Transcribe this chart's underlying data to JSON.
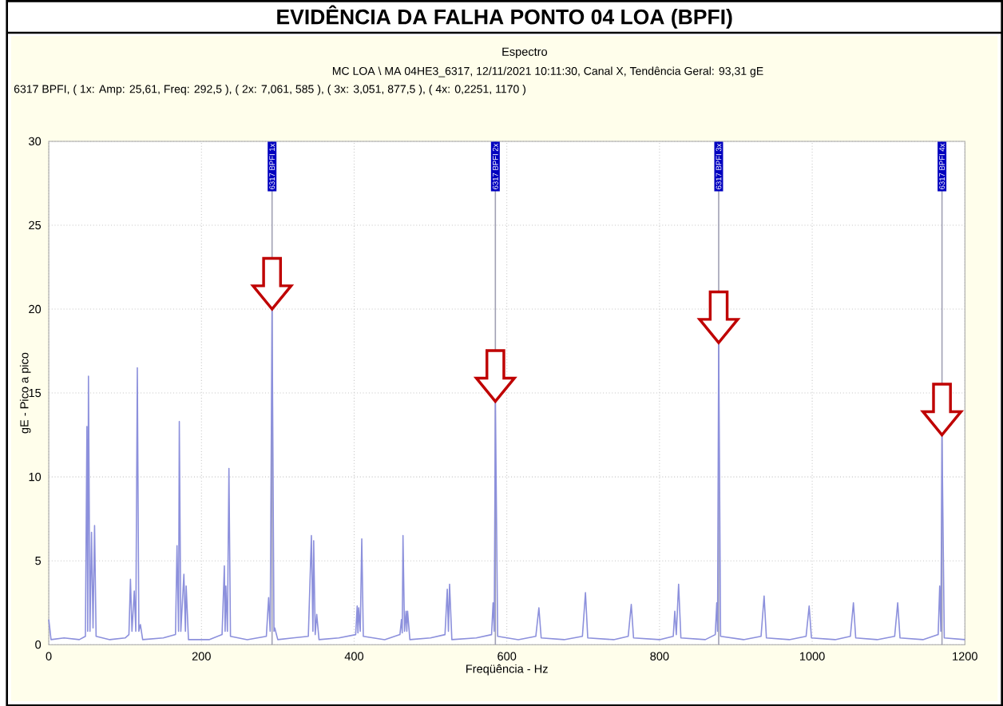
{
  "chart_data": {
    "type": "line",
    "title": "EVIDÊNCIA DA FALHA PONTO 04 LOA (BPFI)",
    "subtitle": "Espectro",
    "annotations": [
      "MC LOA \\ MA 04HE3_6317, 12/11/2021 10:11:30, Canal X, Tendência Geral: 93,31 gE",
      "6317 BPFI, ( 1x: Amp: 25,61, Freq: 292,5 ), ( 2x: 7,061, 585 ), ( 3x: 3,051, 877,5 ), ( 4x: 0,2251, 1170 )"
    ],
    "xlabel": "Freqüência - Hz",
    "ylabel": "gE - Pico a pico",
    "xlim": [
      0,
      1200
    ],
    "ylim": [
      0,
      30
    ],
    "xticks": [
      0,
      200,
      400,
      600,
      800,
      1000,
      1200
    ],
    "yticks": [
      0,
      5,
      10,
      15,
      20,
      25,
      30
    ],
    "grid": true,
    "color": "#8c90dc",
    "x": [
      0,
      3,
      20,
      40,
      48,
      50,
      51,
      52,
      54,
      56,
      58,
      60,
      62,
      80,
      100,
      105,
      107,
      109,
      112,
      114,
      116,
      118,
      120,
      123,
      150,
      166,
      168,
      170,
      171,
      173,
      177,
      179,
      180,
      183,
      210,
      227,
      230,
      231,
      232,
      234,
      236,
      238,
      260,
      285,
      288,
      290,
      292.5,
      295,
      296,
      300,
      320,
      340,
      344,
      346,
      347,
      349,
      351,
      354,
      380,
      402,
      404,
      405,
      406,
      408,
      410,
      412,
      440,
      460,
      462,
      463,
      464,
      466,
      468,
      469,
      470,
      473,
      500,
      519,
      522,
      523.5,
      525,
      528,
      560,
      580,
      582,
      583.5,
      585,
      588,
      615,
      638,
      642,
      645,
      675,
      699,
      703,
      706,
      740,
      759,
      763,
      766,
      800,
      818,
      820,
      822,
      825,
      828,
      860,
      873,
      875,
      876,
      877.5,
      880,
      910,
      933,
      937,
      940,
      970,
      992,
      996,
      999,
      1030,
      1050,
      1054,
      1057,
      1085,
      1108,
      1112,
      1115,
      1145,
      1165,
      1167,
      1168.5,
      1170,
      1173,
      1200
    ],
    "values": [
      1.5,
      0.3,
      0.4,
      0.3,
      0.5,
      13,
      0.8,
      16,
      0.8,
      6.7,
      1,
      7.1,
      0.5,
      0.3,
      0.4,
      0.6,
      3.9,
      0.8,
      3.2,
      0.8,
      16.5,
      0.8,
      1.2,
      0.3,
      0.4,
      0.6,
      5.9,
      0.8,
      13.3,
      0.8,
      4.2,
      0.8,
      3.5,
      0.3,
      0.3,
      0.6,
      4.7,
      0.8,
      3.5,
      0.8,
      10.5,
      0.5,
      0.3,
      0.5,
      2.8,
      0.8,
      20,
      0.8,
      1,
      0.3,
      0.4,
      0.5,
      6.5,
      0.8,
      6.2,
      0.6,
      1.8,
      0.3,
      0.4,
      0.6,
      2.3,
      0.7,
      2.2,
      0.8,
      6.3,
      0.5,
      0.3,
      0.6,
      1.5,
      0.7,
      6.5,
      0.8,
      2,
      0.8,
      2,
      0.3,
      0.4,
      0.6,
      3.3,
      0.8,
      3.6,
      0.3,
      0.4,
      0.6,
      2.5,
      0.8,
      14.5,
      0.5,
      0.3,
      0.5,
      2.2,
      0.4,
      0.3,
      0.5,
      3.1,
      0.4,
      0.3,
      0.5,
      2.4,
      0.4,
      0.3,
      0.5,
      2,
      0.6,
      3.6,
      0.4,
      0.3,
      0.6,
      2.5,
      0.8,
      18,
      0.5,
      0.3,
      0.5,
      2.9,
      0.4,
      0.3,
      0.5,
      2.3,
      0.4,
      0.3,
      0.5,
      2.5,
      0.4,
      0.3,
      0.5,
      2.5,
      0.4,
      0.3,
      0.6,
      3.5,
      0.8,
      12.5,
      0.4,
      0.3
    ],
    "ref_lines": [
      {
        "axis": "x",
        "value": 292.5,
        "label": "6317 BPFI 1x",
        "color": "#a0a0b4"
      },
      {
        "axis": "x",
        "value": 585,
        "label": "6317 BPFI 2x",
        "color": "#a0a0b4"
      },
      {
        "axis": "x",
        "value": 877.5,
        "label": "6317 BPFI 3x",
        "color": "#a0a0b4"
      },
      {
        "axis": "x",
        "value": 1170,
        "label": "6317 BPFI 4x",
        "color": "#a0a0b4"
      }
    ]
  }
}
